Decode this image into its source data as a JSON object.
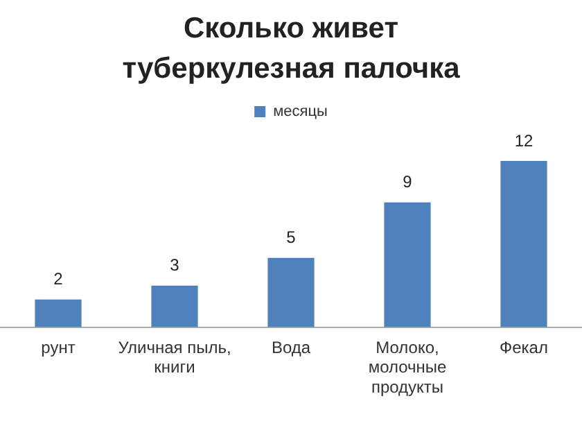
{
  "chart_data": {
    "type": "bar",
    "title": "Сколько живет туберкулезная палочка",
    "categories": [
      "рунт",
      [
        "Уличная пыль,",
        "книги"
      ],
      "Вода",
      [
        "Молоко,",
        "молочные",
        "продукты"
      ],
      "Фекал"
    ],
    "series": [
      {
        "name": "месяцы",
        "color": "#4f81bd",
        "values": [
          2,
          3,
          5,
          9,
          12
        ]
      }
    ],
    "data_labels": true,
    "legend": "top",
    "grid": false
  }
}
